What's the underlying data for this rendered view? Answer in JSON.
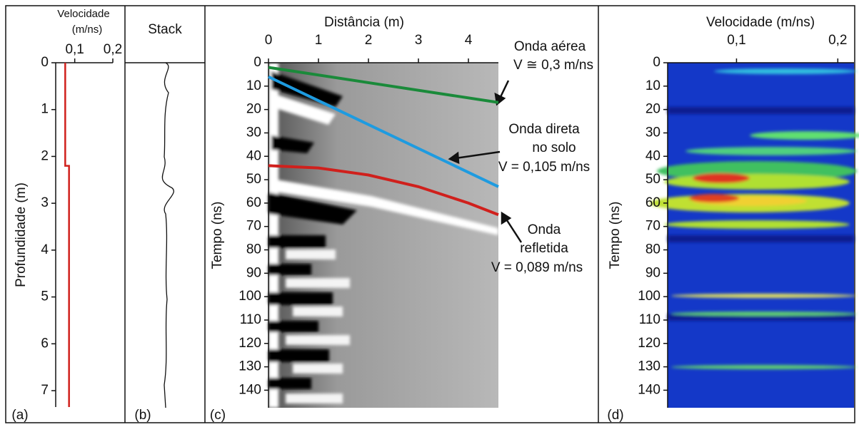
{
  "chart_data": [
    {
      "type": "line",
      "panel_label": "(a)",
      "xlabel": [
        "Velocidade",
        "(m/ns)"
      ],
      "ylabel": "Profundidade (m)",
      "xlim": [
        0.05,
        0.2
      ],
      "xticks": [
        {
          "value": 0.1,
          "label": "0,1"
        },
        {
          "value": 0.2,
          "label": "0,2"
        }
      ],
      "ylim": [
        0,
        7.35
      ],
      "yticks": [
        0,
        1,
        2,
        3,
        4,
        5,
        6,
        7
      ],
      "series": [
        {
          "color": "#d0201c",
          "x": [
            0.075,
            0.075,
            0.085,
            0.085
          ],
          "y": [
            0,
            2.2,
            2.2,
            7.35
          ]
        }
      ]
    },
    {
      "type": "trace",
      "panel_label": "(b)",
      "title": "Stack"
    },
    {
      "type": "line",
      "panel_label": "(c)",
      "xlabel": "Distância (m)",
      "ylabel": "Tempo (ns)",
      "xlim": [
        0,
        4.6
      ],
      "xticks": [
        0,
        1,
        2,
        3,
        4
      ],
      "ylim": [
        0,
        147.5
      ],
      "yticks": [
        0,
        10,
        20,
        30,
        40,
        50,
        60,
        70,
        80,
        90,
        100,
        110,
        120,
        130,
        140
      ],
      "series": [
        {
          "color": "#1a8a3a",
          "x": [
            0,
            4.6
          ],
          "values": [
            2,
            17
          ]
        },
        {
          "color": "#1e9be0",
          "x": [
            0,
            4.6
          ],
          "values": [
            6,
            53
          ]
        },
        {
          "color": "#d0201c",
          "x": [
            0,
            1,
            2,
            3,
            4,
            4.6
          ],
          "values": [
            44,
            45,
            48,
            53,
            60,
            65
          ]
        }
      ],
      "annotations": [
        "Onda aérea",
        "V ≅ 0,3 m/ns",
        "Onda direta",
        "no solo",
        "V = 0,105 m/ns",
        "Onda",
        "refletida",
        "V = 0,089 m/ns"
      ]
    },
    {
      "type": "heatmap",
      "panel_label": "(d)",
      "xlabel": "Velocidade (m/ns)",
      "ylabel": "Tempo (ns)",
      "xlim": [
        0.032,
        0.216
      ],
      "xticks": [
        {
          "value": 0.1,
          "label": "0,1"
        },
        {
          "value": 0.2,
          "label": "0,2"
        }
      ],
      "ylim": [
        0,
        147.5
      ],
      "yticks": [
        0,
        10,
        20,
        30,
        40,
        50,
        60,
        70,
        80,
        90,
        100,
        110,
        120,
        130,
        140
      ]
    }
  ]
}
